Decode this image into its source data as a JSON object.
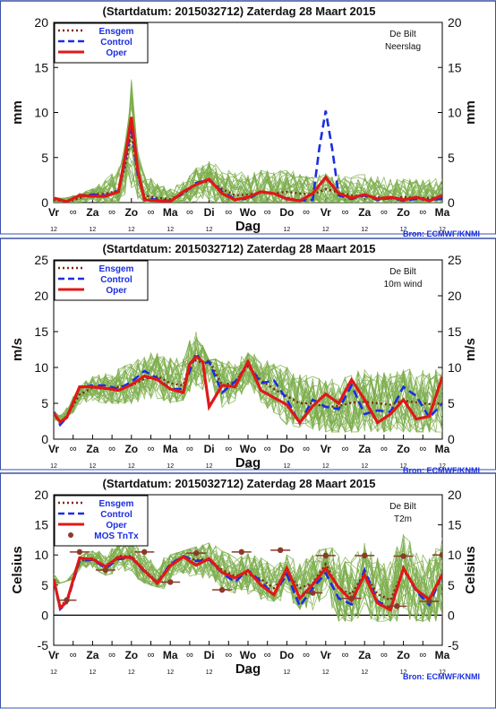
{
  "chart_data": [
    {
      "type": "line",
      "title": "(Startdatum: 2015032712)   Zaterdag  28 Maart    2015",
      "station": "De Bilt",
      "variable": "Neerslag",
      "ylabel": "mm",
      "xlabel": "Dag",
      "source": "Bron: ECMWF/KNMI",
      "ylim": [
        0,
        20
      ],
      "yticks": [
        0,
        5,
        10,
        15,
        20
      ],
      "xlim": [
        0,
        60
      ],
      "day_labels": [
        [
          "Vr",
          0
        ],
        [
          "Za",
          6
        ],
        [
          "Zo",
          12
        ],
        [
          "Ma",
          18
        ],
        [
          "Di",
          24
        ],
        [
          "Wo",
          30
        ],
        [
          "Do",
          36
        ],
        [
          "Vr",
          42
        ],
        [
          "Za",
          48
        ],
        [
          "Zo",
          54
        ],
        [
          "Ma",
          60
        ]
      ],
      "hour_labels": [
        [
          "12",
          0
        ],
        [
          "12",
          6
        ],
        [
          "12",
          12
        ],
        [
          "12",
          18
        ],
        [
          "12",
          24
        ],
        [
          "12",
          30
        ],
        [
          "12",
          36
        ],
        [
          "12",
          42
        ],
        [
          "12",
          48
        ],
        [
          "12",
          54
        ],
        [
          "12",
          60
        ]
      ],
      "legend": [
        "Ensgem",
        "Control",
        "Oper"
      ],
      "series": [
        {
          "name": "Ensgem",
          "style": "dotted",
          "color": "#7a2a10",
          "x": [
            0,
            2,
            4,
            6,
            8,
            10,
            11,
            12,
            13,
            14,
            16,
            18,
            20,
            22,
            24,
            26,
            28,
            30,
            32,
            34,
            36,
            38,
            40,
            42,
            44,
            46,
            48,
            50,
            52,
            54,
            56,
            58,
            60
          ],
          "values": [
            0.3,
            0.1,
            0.5,
            0.9,
            1.0,
            1.3,
            4.0,
            7.5,
            3.0,
            0.8,
            0.5,
            0.4,
            1.0,
            2.0,
            2.4,
            1.5,
            0.8,
            0.9,
            1.1,
            1.0,
            1.2,
            1.0,
            0.9,
            1.5,
            1.1,
            0.8,
            0.7,
            0.6,
            0.5,
            0.6,
            0.5,
            0.5,
            0.5
          ]
        },
        {
          "name": "Control",
          "style": "dashed",
          "color": "#1a2ee0",
          "x": [
            0,
            2,
            4,
            6,
            8,
            10,
            11,
            12,
            13,
            14,
            16,
            18,
            20,
            22,
            24,
            26,
            28,
            30,
            32,
            34,
            36,
            38,
            40,
            41,
            42,
            43,
            44,
            46,
            48,
            50,
            52,
            54,
            56,
            58,
            60
          ],
          "values": [
            0.5,
            0.1,
            0.8,
            0.9,
            0.8,
            1.3,
            4.5,
            8.5,
            3.0,
            0.5,
            0.3,
            0.2,
            1.0,
            2.2,
            2.5,
            1.2,
            0.4,
            0.4,
            1.2,
            1.0,
            0.5,
            0.2,
            0.3,
            6.0,
            10.2,
            6.0,
            0.8,
            0.4,
            0.8,
            0.3,
            0.5,
            0.2,
            0.4,
            0.3,
            0.4
          ]
        },
        {
          "name": "Oper",
          "style": "solid",
          "color": "#e01818",
          "x": [
            0,
            2,
            4,
            6,
            8,
            10,
            11,
            12,
            13,
            14,
            16,
            18,
            20,
            22,
            24,
            26,
            28,
            30,
            32,
            34,
            36,
            38,
            40,
            42,
            44,
            46,
            48,
            50,
            52,
            54,
            56,
            58,
            60
          ],
          "values": [
            0.5,
            0.1,
            0.8,
            0.7,
            0.7,
            1.2,
            5.0,
            9.5,
            3.5,
            0.3,
            0.2,
            0.1,
            1.2,
            2.0,
            2.6,
            1.0,
            0.3,
            0.6,
            1.2,
            1.0,
            0.4,
            0.2,
            1.0,
            2.8,
            1.0,
            0.5,
            0.9,
            0.4,
            0.6,
            0.3,
            0.6,
            0.2,
            0.8
          ]
        }
      ],
      "ensemble_color": "#7dae4c",
      "ensemble_envelope": {
        "x": [
          0,
          6,
          11,
          12,
          13,
          18,
          24,
          30,
          36,
          42,
          48,
          54,
          60
        ],
        "low": [
          0,
          0,
          0,
          0,
          0,
          0,
          0,
          0,
          0,
          0,
          0,
          0,
          0
        ],
        "high": [
          0.8,
          1.5,
          7,
          14,
          6,
          2.5,
          5,
          5.8,
          5.5,
          4,
          5.5,
          4.5,
          5
        ]
      }
    },
    {
      "type": "line",
      "title": "(Startdatum: 2015032712)   Zaterdag  28 Maart    2015",
      "station": "De Bilt",
      "variable": "10m wind",
      "ylabel": "m/s",
      "xlabel": "Dag",
      "source": "Bron: ECMWF/KNMI",
      "ylim": [
        0,
        25
      ],
      "yticks": [
        0,
        5,
        10,
        15,
        20,
        25
      ],
      "xlim": [
        0,
        60
      ],
      "day_labels": [
        [
          "Vr",
          0
        ],
        [
          "Za",
          6
        ],
        [
          "Zo",
          12
        ],
        [
          "Ma",
          18
        ],
        [
          "Di",
          24
        ],
        [
          "Wo",
          30
        ],
        [
          "Do",
          36
        ],
        [
          "Vr",
          42
        ],
        [
          "Za",
          48
        ],
        [
          "Zo",
          54
        ],
        [
          "Ma",
          60
        ]
      ],
      "hour_labels": [
        [
          "12",
          0
        ],
        [
          "12",
          6
        ],
        [
          "12",
          12
        ],
        [
          "12",
          18
        ],
        [
          "12",
          24
        ],
        [
          "12",
          30
        ],
        [
          "12",
          36
        ],
        [
          "12",
          42
        ],
        [
          "12",
          48
        ],
        [
          "12",
          54
        ],
        [
          "12",
          60
        ]
      ],
      "legend": [
        "Ensgem",
        "Control",
        "Oper"
      ],
      "series": [
        {
          "name": "Ensgem",
          "style": "dotted",
          "color": "#7a2a10",
          "x": [
            0,
            1,
            2,
            4,
            6,
            8,
            10,
            12,
            14,
            16,
            18,
            20,
            21,
            22,
            23,
            24,
            26,
            28,
            30,
            32,
            34,
            36,
            38,
            40,
            42,
            44,
            46,
            48,
            50,
            52,
            54,
            56,
            58,
            60
          ],
          "values": [
            3.6,
            2.3,
            3.2,
            6.2,
            7.2,
            7.0,
            7.3,
            7.5,
            8.4,
            8.8,
            7.8,
            7.5,
            10.5,
            11.0,
            10.6,
            11.0,
            7.5,
            8.0,
            10.2,
            8.2,
            7.0,
            6.0,
            5.0,
            5.0,
            4.5,
            4.6,
            5.1,
            5.2,
            5.0,
            4.8,
            5.4,
            5.1,
            4.9,
            5.0
          ]
        },
        {
          "name": "Control",
          "style": "dashed",
          "color": "#1a2ee0",
          "x": [
            0,
            1,
            2,
            4,
            6,
            8,
            10,
            12,
            14,
            16,
            18,
            20,
            21,
            22,
            23,
            24,
            26,
            28,
            30,
            32,
            34,
            36,
            38,
            40,
            42,
            44,
            46,
            48,
            50,
            52,
            54,
            56,
            58,
            60
          ],
          "values": [
            3.8,
            2.0,
            3.0,
            7.2,
            7.5,
            7.5,
            7.0,
            8.0,
            9.5,
            8.5,
            7.0,
            7.0,
            9.5,
            12.0,
            10.5,
            10.8,
            6.5,
            8.0,
            10.5,
            7.8,
            8.2,
            5.5,
            2.2,
            5.5,
            4.5,
            4.2,
            7.5,
            3.5,
            4.0,
            3.8,
            7.3,
            6.0,
            3.0,
            5.0
          ]
        },
        {
          "name": "Oper",
          "style": "solid",
          "color": "#e01818",
          "x": [
            0,
            1,
            2,
            4,
            6,
            8,
            10,
            12,
            14,
            16,
            18,
            20,
            21,
            22,
            23,
            24,
            26,
            28,
            30,
            32,
            34,
            36,
            38,
            40,
            42,
            44,
            46,
            48,
            50,
            52,
            54,
            56,
            58,
            60
          ],
          "values": [
            3.6,
            2.4,
            3.0,
            7.3,
            7.3,
            7.1,
            6.8,
            7.6,
            8.8,
            8.3,
            7.0,
            6.5,
            10.5,
            11.5,
            10.8,
            4.5,
            7.5,
            7.3,
            10.8,
            6.8,
            5.8,
            4.8,
            2.3,
            4.6,
            6.3,
            5.0,
            8.3,
            5.5,
            2.3,
            3.5,
            5.5,
            2.8,
            3.2,
            8.7
          ]
        }
      ],
      "ensemble_color": "#7dae4c",
      "ensemble_envelope": {
        "x": [
          0,
          6,
          12,
          18,
          22,
          24,
          30,
          36,
          42,
          48,
          54,
          60
        ],
        "low": [
          2,
          5,
          5,
          5,
          6,
          3,
          6,
          2,
          1,
          1,
          1,
          1
        ],
        "high": [
          4,
          9,
          12,
          13,
          15,
          11,
          12,
          11,
          10,
          11,
          11,
          12
        ]
      }
    },
    {
      "type": "line",
      "title": "(Startdatum: 2015032712)   Zaterdag  28 Maart    2015",
      "station": "De Bilt",
      "variable": "T2m",
      "ylabel": "Celsius",
      "xlabel": "Dag",
      "source": "Bron: ECMWF/KNMI",
      "ylim": [
        -5,
        20
      ],
      "yticks": [
        -5,
        0,
        5,
        10,
        15,
        20
      ],
      "xlim": [
        0,
        60
      ],
      "day_labels": [
        [
          "Vr",
          0
        ],
        [
          "Za",
          6
        ],
        [
          "Zo",
          12
        ],
        [
          "Ma",
          18
        ],
        [
          "Di",
          24
        ],
        [
          "Wo",
          30
        ],
        [
          "Do",
          36
        ],
        [
          "Vr",
          42
        ],
        [
          "Za",
          48
        ],
        [
          "Zo",
          54
        ],
        [
          "Ma",
          60
        ]
      ],
      "hour_labels": [
        [
          "12",
          0
        ],
        [
          "12",
          6
        ],
        [
          "12",
          12
        ],
        [
          "12",
          18
        ],
        [
          "12",
          24
        ],
        [
          "12",
          30
        ],
        [
          "12",
          36
        ],
        [
          "12",
          42
        ],
        [
          "12",
          48
        ],
        [
          "12",
          54
        ],
        [
          "12",
          60
        ]
      ],
      "legend": [
        "Ensgem",
        "Control",
        "Oper",
        "MOS TnTx"
      ],
      "series": [
        {
          "name": "Ensgem",
          "style": "dotted",
          "color": "#7a2a10",
          "x": [
            0,
            1,
            2,
            4,
            6,
            8,
            10,
            12,
            14,
            16,
            18,
            20,
            22,
            24,
            26,
            28,
            30,
            32,
            34,
            36,
            38,
            40,
            42,
            44,
            46,
            48,
            50,
            52,
            54,
            56,
            58,
            60
          ],
          "values": [
            6.0,
            1.5,
            2.5,
            9.0,
            9.5,
            8.0,
            9.8,
            9.8,
            7.5,
            5.5,
            8.5,
            9.5,
            9.2,
            9.3,
            7.5,
            6.5,
            6.8,
            6.0,
            4.5,
            7.0,
            4.5,
            5.3,
            8.5,
            4.5,
            3.5,
            7.0,
            3.5,
            2.5,
            7.5,
            4.0,
            2.8,
            6.5
          ]
        },
        {
          "name": "Control",
          "style": "dashed",
          "color": "#1a2ee0",
          "x": [
            0,
            1,
            2,
            4,
            6,
            8,
            10,
            12,
            14,
            16,
            18,
            20,
            22,
            24,
            26,
            28,
            30,
            32,
            34,
            36,
            38,
            40,
            42,
            44,
            46,
            48,
            50,
            52,
            54,
            56,
            58,
            60
          ],
          "values": [
            5.8,
            1.0,
            2.0,
            9.0,
            9.2,
            7.8,
            9.3,
            9.5,
            7.2,
            5.4,
            8.5,
            9.8,
            9.0,
            9.2,
            7.0,
            5.5,
            7.5,
            5.5,
            3.5,
            6.8,
            1.5,
            4.5,
            7.0,
            2.8,
            1.8,
            7.5,
            2.3,
            1.2,
            7.8,
            4.0,
            1.7,
            6.8
          ]
        },
        {
          "name": "Oper",
          "style": "solid",
          "color": "#e01818",
          "x": [
            0,
            1,
            2,
            4,
            6,
            8,
            10,
            12,
            14,
            16,
            18,
            20,
            22,
            24,
            26,
            28,
            30,
            32,
            34,
            36,
            38,
            40,
            42,
            44,
            46,
            48,
            50,
            52,
            54,
            56,
            58,
            60
          ],
          "values": [
            6.0,
            1.2,
            2.2,
            9.5,
            9.3,
            8.1,
            9.6,
            9.6,
            7.4,
            5.3,
            8.2,
            9.7,
            8.3,
            9.4,
            7.1,
            6.2,
            7.4,
            5.0,
            3.4,
            7.8,
            2.8,
            5.1,
            7.8,
            4.6,
            2.4,
            6.7,
            2.0,
            0.9,
            7.8,
            4.2,
            2.6,
            6.8
          ]
        },
        {
          "name": "MOS TnTx",
          "style": "points",
          "color": "#8b3a2a",
          "x": [
            2,
            4,
            8,
            14,
            18,
            22,
            26,
            29,
            35,
            40,
            42,
            46,
            48,
            53,
            54,
            58,
            60
          ],
          "values": [
            2.5,
            10.5,
            7.5,
            10.5,
            5.5,
            10.3,
            4.2,
            10.5,
            10.8,
            3.7,
            9.9,
            2.8,
            9.9,
            1.5,
            9.8,
            2.3,
            10.0
          ]
        }
      ],
      "ensemble_color": "#7dae4c",
      "ensemble_envelope": {
        "x": [
          0,
          6,
          12,
          18,
          24,
          30,
          36,
          42,
          48,
          54,
          60
        ],
        "low": [
          5,
          7,
          6,
          4,
          5,
          3,
          2,
          -1,
          -1,
          -1,
          -1
        ],
        "high": [
          7,
          11,
          12,
          10,
          12,
          11,
          10,
          11,
          12,
          14,
          14
        ]
      }
    }
  ]
}
